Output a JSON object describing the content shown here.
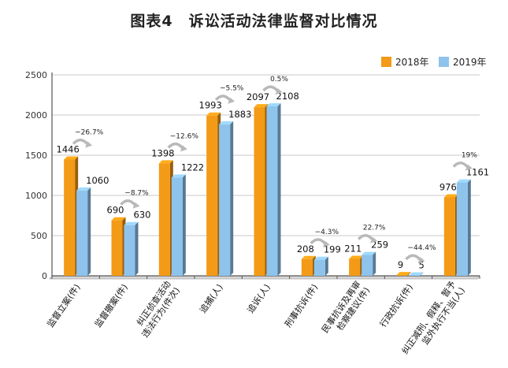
{
  "chart_data": {
    "type": "bar",
    "title": "图表4　诉讼活动法律监督对比情况",
    "categories": [
      [
        "监督立案(件)"
      ],
      [
        "监督撤案(件)"
      ],
      [
        "纠正侦查活动",
        "违法行为(件次)"
      ],
      [
        "追捕(人)"
      ],
      [
        "追诉(人)"
      ],
      [
        "刑事抗诉(件)"
      ],
      [
        "民事抗诉及再审",
        "检察建议(件)"
      ],
      [
        "行政抗诉(件)"
      ],
      [
        "纠正减刑、假释、暂予",
        "监外执行不当(人)"
      ]
    ],
    "series": [
      {
        "name": "2018年",
        "color": "#f39a17",
        "values": [
          1446,
          690,
          1398,
          1993,
          2097,
          208,
          211,
          9,
          976
        ]
      },
      {
        "name": "2019年",
        "color": "#8ec3ec",
        "values": [
          1060,
          630,
          1222,
          1883,
          2108,
          199,
          259,
          5,
          1161
        ]
      }
    ],
    "changes": [
      "−26.7%",
      "−8.7%",
      "−12.6%",
      "−5.5%",
      "0.5%",
      "−4.3%",
      "22.7%",
      "−44.4%",
      "19%"
    ],
    "yticks": [
      0,
      500,
      1000,
      1500,
      2000,
      2500
    ],
    "ylim": [
      0,
      2500
    ],
    "legend_position": "top-right",
    "grid": true
  }
}
